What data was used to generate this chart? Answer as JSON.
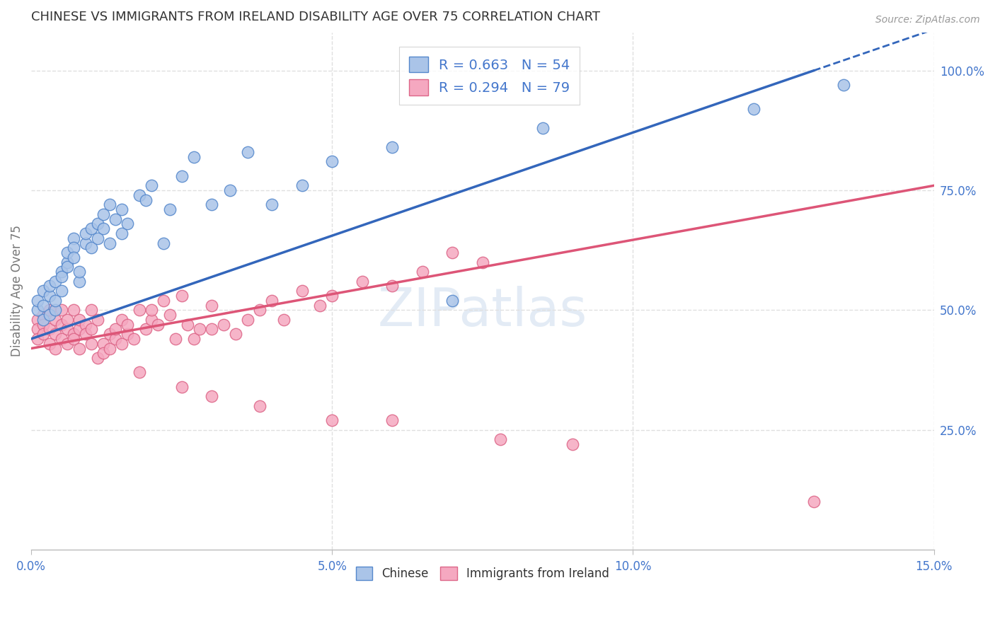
{
  "title": "CHINESE VS IMMIGRANTS FROM IRELAND DISABILITY AGE OVER 75 CORRELATION CHART",
  "source": "Source: ZipAtlas.com",
  "ylabel": "Disability Age Over 75",
  "xmin": 0.0,
  "xmax": 0.15,
  "ymin": 0.0,
  "ymax": 1.08,
  "xticks": [
    0.0,
    0.05,
    0.1,
    0.15
  ],
  "xticklabels": [
    "0.0%",
    "5.0%",
    "10.0%",
    "15.0%"
  ],
  "yticks_right": [
    0.25,
    0.5,
    0.75,
    1.0
  ],
  "yticklabels_right": [
    "25.0%",
    "50.0%",
    "75.0%",
    "100.0%"
  ],
  "gridline_color": "#e0e0e0",
  "background_color": "#ffffff",
  "chinese_color": "#aac4e8",
  "ireland_color": "#f5a8c0",
  "chinese_edge": "#5588cc",
  "ireland_edge": "#dd6688",
  "trend_blue": "#3366bb",
  "trend_pink": "#dd5577",
  "R_chinese": 0.663,
  "N_chinese": 54,
  "R_ireland": 0.294,
  "N_ireland": 79,
  "watermark": "ZIPatlas",
  "tick_color": "#4477cc",
  "title_color": "#333333",
  "source_color": "#999999",
  "label_color": "#777777",
  "chinese_x": [
    0.001,
    0.001,
    0.002,
    0.002,
    0.002,
    0.003,
    0.003,
    0.003,
    0.004,
    0.004,
    0.004,
    0.005,
    0.005,
    0.005,
    0.006,
    0.006,
    0.006,
    0.007,
    0.007,
    0.007,
    0.008,
    0.008,
    0.009,
    0.009,
    0.01,
    0.01,
    0.011,
    0.011,
    0.012,
    0.012,
    0.013,
    0.013,
    0.014,
    0.015,
    0.015,
    0.016,
    0.018,
    0.019,
    0.02,
    0.022,
    0.023,
    0.025,
    0.027,
    0.03,
    0.033,
    0.036,
    0.04,
    0.045,
    0.05,
    0.06,
    0.07,
    0.085,
    0.12,
    0.135
  ],
  "chinese_y": [
    0.5,
    0.52,
    0.48,
    0.54,
    0.51,
    0.53,
    0.49,
    0.55,
    0.5,
    0.52,
    0.56,
    0.58,
    0.54,
    0.57,
    0.6,
    0.62,
    0.59,
    0.65,
    0.63,
    0.61,
    0.56,
    0.58,
    0.64,
    0.66,
    0.63,
    0.67,
    0.68,
    0.65,
    0.7,
    0.67,
    0.64,
    0.72,
    0.69,
    0.66,
    0.71,
    0.68,
    0.74,
    0.73,
    0.76,
    0.64,
    0.71,
    0.78,
    0.82,
    0.72,
    0.75,
    0.83,
    0.72,
    0.76,
    0.81,
    0.84,
    0.52,
    0.88,
    0.92,
    0.97
  ],
  "ireland_x": [
    0.001,
    0.001,
    0.001,
    0.002,
    0.002,
    0.002,
    0.003,
    0.003,
    0.003,
    0.004,
    0.004,
    0.004,
    0.005,
    0.005,
    0.005,
    0.006,
    0.006,
    0.006,
    0.007,
    0.007,
    0.007,
    0.008,
    0.008,
    0.008,
    0.009,
    0.009,
    0.01,
    0.01,
    0.01,
    0.011,
    0.011,
    0.012,
    0.012,
    0.013,
    0.013,
    0.014,
    0.014,
    0.015,
    0.015,
    0.016,
    0.016,
    0.017,
    0.018,
    0.019,
    0.02,
    0.02,
    0.021,
    0.022,
    0.023,
    0.024,
    0.025,
    0.026,
    0.027,
    0.028,
    0.03,
    0.03,
    0.032,
    0.034,
    0.036,
    0.038,
    0.04,
    0.042,
    0.045,
    0.048,
    0.05,
    0.055,
    0.06,
    0.065,
    0.07,
    0.075,
    0.018,
    0.025,
    0.03,
    0.038,
    0.05,
    0.06,
    0.078,
    0.09,
    0.13
  ],
  "ireland_y": [
    0.48,
    0.46,
    0.44,
    0.49,
    0.47,
    0.45,
    0.5,
    0.43,
    0.46,
    0.48,
    0.42,
    0.45,
    0.47,
    0.44,
    0.5,
    0.46,
    0.43,
    0.48,
    0.45,
    0.5,
    0.44,
    0.46,
    0.48,
    0.42,
    0.47,
    0.45,
    0.5,
    0.43,
    0.46,
    0.48,
    0.4,
    0.43,
    0.41,
    0.45,
    0.42,
    0.44,
    0.46,
    0.43,
    0.48,
    0.45,
    0.47,
    0.44,
    0.5,
    0.46,
    0.48,
    0.5,
    0.47,
    0.52,
    0.49,
    0.44,
    0.53,
    0.47,
    0.44,
    0.46,
    0.51,
    0.46,
    0.47,
    0.45,
    0.48,
    0.5,
    0.52,
    0.48,
    0.54,
    0.51,
    0.53,
    0.56,
    0.55,
    0.58,
    0.62,
    0.6,
    0.37,
    0.34,
    0.32,
    0.3,
    0.27,
    0.27,
    0.23,
    0.22,
    0.1
  ],
  "blue_trend_x0": 0.0,
  "blue_trend_y0": 0.44,
  "blue_trend_x1": 0.13,
  "blue_trend_y1": 1.0,
  "pink_trend_x0": 0.0,
  "pink_trend_y0": 0.42,
  "pink_trend_x1": 0.15,
  "pink_trend_y1": 0.76
}
